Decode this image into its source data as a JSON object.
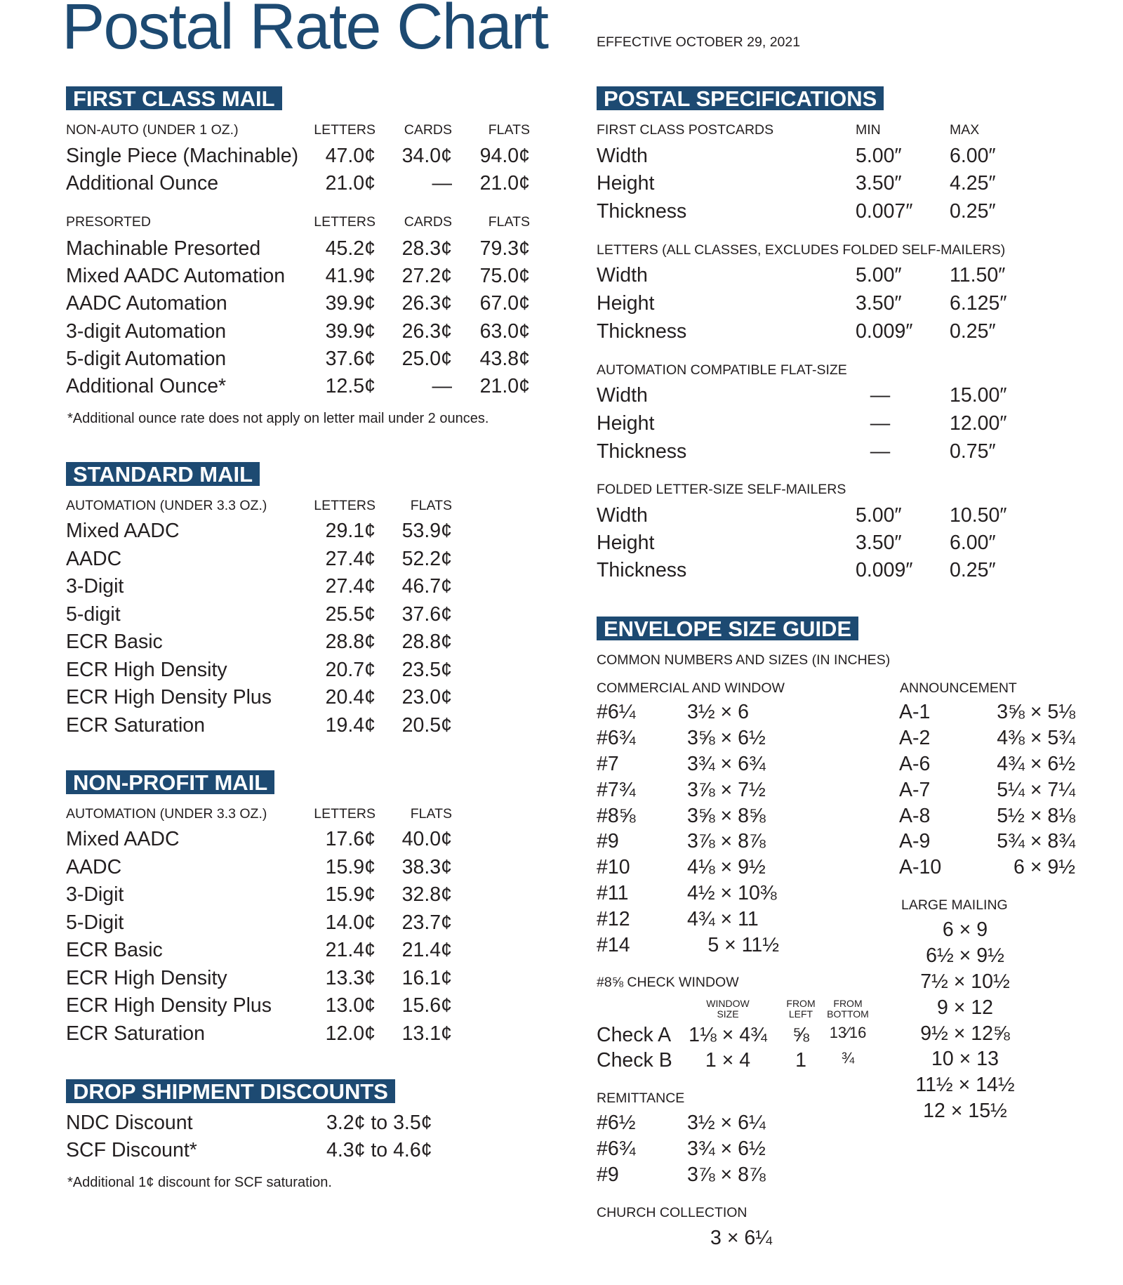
{
  "title": "Postal Rate Chart",
  "effective": "EFFECTIVE OCTOBER 29, 2021",
  "first_class": {
    "heading": "FIRST CLASS MAIL",
    "non_auto": {
      "label": "NON-AUTO (UNDER 1 OZ.)",
      "columns": [
        "LETTERS",
        "CARDS",
        "FLATS"
      ],
      "rows": [
        [
          "Single Piece (Machinable)",
          "47.0¢",
          "34.0¢",
          "94.0¢"
        ],
        [
          "Additional Ounce",
          "21.0¢",
          "—",
          "21.0¢"
        ]
      ]
    },
    "presorted": {
      "label": "PRESORTED",
      "columns": [
        "LETTERS",
        "CARDS",
        "FLATS"
      ],
      "rows": [
        [
          "Machinable Presorted",
          "45.2¢",
          "28.3¢",
          "79.3¢"
        ],
        [
          "Mixed AADC Automation",
          "41.9¢",
          "27.2¢",
          "75.0¢"
        ],
        [
          "AADC Automation",
          "39.9¢",
          "26.3¢",
          "67.0¢"
        ],
        [
          "3-digit Automation",
          "39.9¢",
          "26.3¢",
          "63.0¢"
        ],
        [
          "5-digit Automation",
          "37.6¢",
          "25.0¢",
          "43.8¢"
        ],
        [
          "Additional Ounce*",
          "12.5¢",
          "—",
          "21.0¢"
        ]
      ]
    },
    "footnote": "*Additional ounce rate does not apply on letter mail under 2 ounces."
  },
  "standard": {
    "heading": "STANDARD MAIL",
    "label": "AUTOMATION (UNDER 3.3 OZ.)",
    "columns": [
      "LETTERS",
      "FLATS"
    ],
    "rows": [
      [
        "Mixed AADC",
        "29.1¢",
        "53.9¢"
      ],
      [
        "AADC",
        "27.4¢",
        "52.2¢"
      ],
      [
        "3-Digit",
        "27.4¢",
        "46.7¢"
      ],
      [
        "5-digit",
        "25.5¢",
        "37.6¢"
      ],
      [
        "ECR Basic",
        "28.8¢",
        "28.8¢"
      ],
      [
        "ECR High Density",
        "20.7¢",
        "23.5¢"
      ],
      [
        "ECR High Density Plus",
        "20.4¢",
        "23.0¢"
      ],
      [
        "ECR Saturation",
        "19.4¢",
        "20.5¢"
      ]
    ]
  },
  "non_profit": {
    "heading": "NON-PROFIT MAIL",
    "label": "AUTOMATION (UNDER 3.3 OZ.)",
    "columns": [
      "LETTERS",
      "FLATS"
    ],
    "rows": [
      [
        "Mixed AADC",
        "17.6¢",
        "40.0¢"
      ],
      [
        "AADC",
        "15.9¢",
        "38.3¢"
      ],
      [
        "3-Digit",
        "15.9¢",
        "32.8¢"
      ],
      [
        "5-Digit",
        "14.0¢",
        "23.7¢"
      ],
      [
        "ECR Basic",
        "21.4¢",
        "21.4¢"
      ],
      [
        "ECR High Density",
        "13.3¢",
        "16.1¢"
      ],
      [
        "ECR High Density Plus",
        "13.0¢",
        "15.6¢"
      ],
      [
        "ECR Saturation",
        "12.0¢",
        "13.1¢"
      ]
    ]
  },
  "drop_shipment": {
    "heading": "DROP SHIPMENT DISCOUNTS",
    "rows": [
      [
        "NDC Discount",
        "3.2¢ to 3.5¢"
      ],
      [
        "SCF Discount*",
        "4.3¢ to 4.6¢"
      ]
    ],
    "footnote": "*Additional 1¢ discount for SCF saturation."
  },
  "postal_specs": {
    "heading": "POSTAL SPECIFICATIONS",
    "groups": [
      {
        "label": "FIRST CLASS POSTCARDS",
        "columns": [
          "MIN",
          "MAX"
        ],
        "rows": [
          [
            "Width",
            "5.00″",
            "6.00″"
          ],
          [
            "Height",
            "3.50″",
            "4.25″"
          ],
          [
            "Thickness",
            "0.007″",
            "0.25″"
          ]
        ]
      },
      {
        "label": "LETTERS (ALL CLASSES, EXCLUDES FOLDED SELF-MAILERS)",
        "rows": [
          [
            "Width",
            "5.00″",
            "11.50″"
          ],
          [
            "Height",
            "3.50″",
            "6.125″"
          ],
          [
            "Thickness",
            "0.009″",
            "0.25″"
          ]
        ]
      },
      {
        "label": "AUTOMATION COMPATIBLE FLAT-SIZE",
        "rows": [
          [
            "Width",
            "—",
            "15.00″"
          ],
          [
            "Height",
            "—",
            "12.00″"
          ],
          [
            "Thickness",
            "—",
            "0.75″"
          ]
        ]
      },
      {
        "label": "FOLDED LETTER-SIZE SELF-MAILERS",
        "rows": [
          [
            "Width",
            "5.00″",
            "10.50″"
          ],
          [
            "Height",
            "3.50″",
            "6.00″"
          ],
          [
            "Thickness",
            "0.009″",
            "0.25″"
          ]
        ]
      }
    ]
  },
  "envelope_guide": {
    "heading": "ENVELOPE SIZE GUIDE",
    "subheading": "COMMON NUMBERS AND SIZES (IN INCHES)",
    "commercial": {
      "label": "COMMERCIAL AND WINDOW",
      "rows": [
        [
          "#6¼",
          "3½ × 6"
        ],
        [
          "#6¾",
          "3⅝ × 6½"
        ],
        [
          "#7",
          "3¾ × 6¾"
        ],
        [
          "#7¾",
          "3⅞ × 7½"
        ],
        [
          "#8⅝",
          "3⅝ × 8⅝"
        ],
        [
          "#9",
          "3⅞ × 8⅞"
        ],
        [
          "#10",
          "4⅛ × 9½"
        ],
        [
          "#11",
          "4½ × 10⅜"
        ],
        [
          "#12",
          "4¾ × 11"
        ],
        [
          "#14",
          "5 × 11½"
        ]
      ]
    },
    "announcement": {
      "label": "ANNOUNCEMENT",
      "rows": [
        [
          "A-1",
          "3⅝ × 5⅛"
        ],
        [
          "A-2",
          "4⅜ × 5¾"
        ],
        [
          "A-6",
          "4¾ × 6½"
        ],
        [
          "A-7",
          "5¼ × 7¼"
        ],
        [
          "A-8",
          "5½ × 8⅛"
        ],
        [
          "A-9",
          "5¾ × 8¾"
        ],
        [
          "A-10",
          "6 × 9½"
        ]
      ]
    },
    "large_mailing": {
      "label": "LARGE MAILING",
      "sizes": [
        "6 × 9",
        "6½ × 9½",
        "7½ × 10½",
        "9 × 12",
        "9½ × 12⅝",
        "10 × 13",
        "11½ × 14½",
        "12 × 15½"
      ]
    },
    "check_window": {
      "label": "#8⅝ CHECK WINDOW",
      "columns": [
        "WINDOW SIZE",
        "FROM LEFT",
        "FROM BOTTOM"
      ],
      "rows": [
        [
          "Check A",
          "1⅛ × 4¾",
          "⅝",
          "13⁄16"
        ],
        [
          "Check B",
          "1 × 4",
          "1",
          "¾"
        ]
      ]
    },
    "remittance": {
      "label": "REMITTANCE",
      "rows": [
        [
          "#6½",
          "3½ × 6¼"
        ],
        [
          "#6¾",
          "3¾ × 6½"
        ],
        [
          "#9",
          "3⅞ × 8⅞"
        ]
      ]
    },
    "church": {
      "label": "CHURCH COLLECTION",
      "size": "3 × 6¼"
    }
  }
}
